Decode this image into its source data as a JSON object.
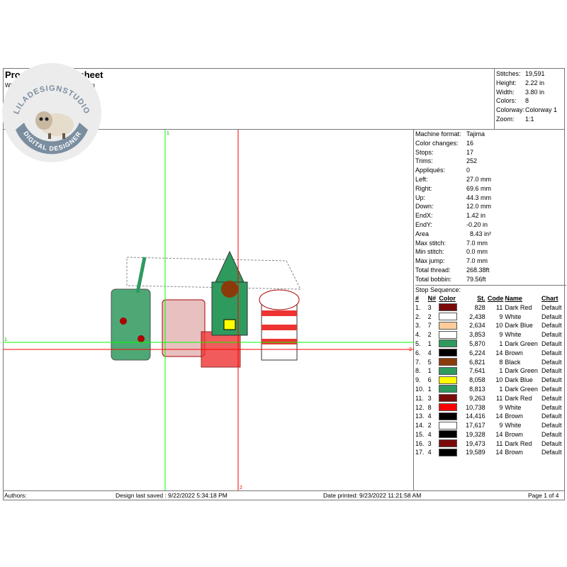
{
  "header": {
    "title": "Production Worksheet",
    "subtitle_left": "Wilc",
    "subtitle_right": "esigning"
  },
  "stats": [
    {
      "k": "Stitches:",
      "v": "19,591"
    },
    {
      "k": "Height:",
      "v": "2.22 in"
    },
    {
      "k": "Width:",
      "v": "3.80 in"
    },
    {
      "k": "Colors:",
      "v": "8"
    },
    {
      "k": "Colorway:",
      "v": "Colorway 1"
    },
    {
      "k": "Zoom:",
      "v": "1:1"
    }
  ],
  "details": [
    {
      "k": "Machine format:",
      "v": "Tajima"
    },
    {
      "k": "Color changes:",
      "v": "16"
    },
    {
      "k": "Stops:",
      "v": "17"
    },
    {
      "k": "Trims:",
      "v": "252"
    },
    {
      "k": "Appliqués:",
      "v": "0"
    },
    {
      "k": "Left:",
      "v": "27.0 mm"
    },
    {
      "k": "Right:",
      "v": "69.6 mm"
    },
    {
      "k": "Up:",
      "v": "44.3 mm"
    },
    {
      "k": "Down:",
      "v": "12.0 mm"
    },
    {
      "k": "EndX:",
      "v": "1.42 in"
    },
    {
      "k": "EndY:",
      "v": "-0.20 in"
    },
    {
      "k": "Area",
      "v": "  8.43 in²"
    },
    {
      "k": "Max stitch:",
      "v": "7.0 mm"
    },
    {
      "k": "Min stitch:",
      "v": "0.0 mm"
    },
    {
      "k": "Max jump:",
      "v": "7.0 mm"
    },
    {
      "k": "Total thread:",
      "v": "268.38ft"
    },
    {
      "k": "Total bobbin:",
      "v": "79.56ft"
    }
  ],
  "stop_sequence": {
    "label": "Stop Sequence:",
    "columns": [
      "#",
      "N#",
      "Color",
      "St.",
      "Code",
      "Name",
      "Chart"
    ],
    "rows": [
      [
        "1.",
        "3",
        "#7a0a0a",
        "828",
        "11",
        "Dark Red",
        "Default"
      ],
      [
        "2.",
        "2",
        "#ffffff",
        "2,438",
        "9",
        "White",
        "Default"
      ],
      [
        "3.",
        "7",
        "#ffcc99",
        "2,634",
        "10",
        "Dark Blue",
        "Default"
      ],
      [
        "4.",
        "2",
        "#ffffff",
        "3,853",
        "9",
        "White",
        "Default"
      ],
      [
        "5.",
        "1",
        "#2e9a5e",
        "5,870",
        "1",
        "Dark Green",
        "Default"
      ],
      [
        "6.",
        "4",
        "#000000",
        "6,224",
        "14",
        "Brown",
        "Default"
      ],
      [
        "7.",
        "5",
        "#8b3a0a",
        "6,821",
        "8",
        "Black",
        "Default"
      ],
      [
        "8.",
        "1",
        "#2e9a5e",
        "7,641",
        "1",
        "Dark Green",
        "Default"
      ],
      [
        "9.",
        "6",
        "#ffff00",
        "8,058",
        "10",
        "Dark Blue",
        "Default"
      ],
      [
        "10.",
        "1",
        "#2e9a5e",
        "8,813",
        "1",
        "Dark Green",
        "Default"
      ],
      [
        "11.",
        "3",
        "#7a0a0a",
        "9,263",
        "11",
        "Dark Red",
        "Default"
      ],
      [
        "12.",
        "8",
        "#ff0000",
        "10,738",
        "9",
        "White",
        "Default"
      ],
      [
        "13.",
        "4",
        "#000000",
        "14,416",
        "14",
        "Brown",
        "Default"
      ],
      [
        "14.",
        "2",
        "#ffffff",
        "17,617",
        "9",
        "White",
        "Default"
      ],
      [
        "15.",
        "4",
        "#000000",
        "19,328",
        "14",
        "Brown",
        "Default"
      ],
      [
        "16.",
        "3",
        "#7a0a0a",
        "19,473",
        "11",
        "Dark Red",
        "Default"
      ],
      [
        "17.",
        "4",
        "#000000",
        "19,589",
        "14",
        "Brown",
        "Default"
      ]
    ]
  },
  "guides": {
    "green_label_1": "1",
    "red_label_2": "2",
    "green_h_label": "1",
    "red_h_label": "2"
  },
  "footer": {
    "authors": "Authors:",
    "saved": "Design last saved : 9/22/2022 5:34:18 PM",
    "printed": "Date printed: 9/23/2022 11:21:58 AM",
    "page": "Page 1 of 4"
  },
  "logo": {
    "top_text": "LILADESIGNSTUDIO",
    "bottom_text": "DIGITAL DESIGNER"
  }
}
